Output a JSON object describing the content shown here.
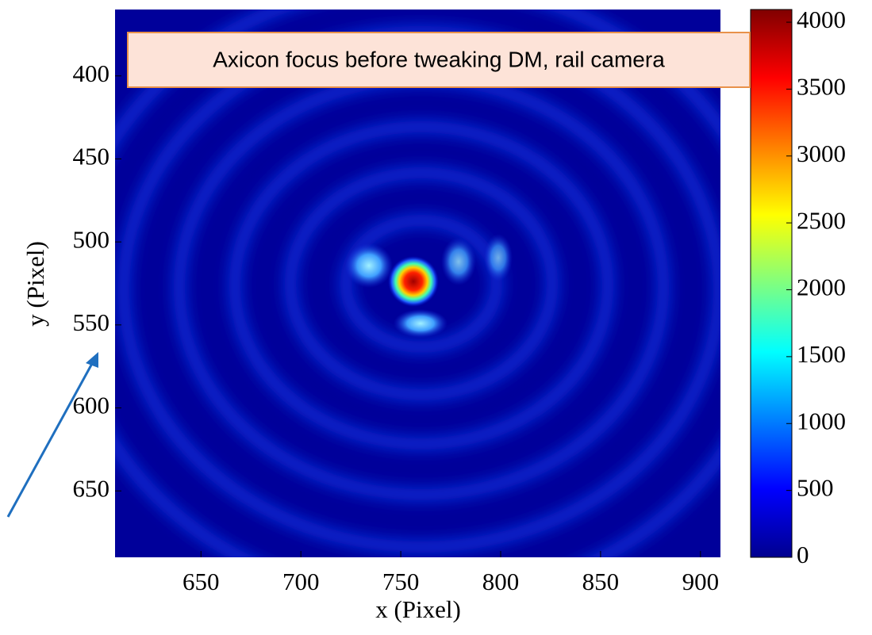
{
  "chart_data": {
    "type": "heatmap",
    "annotation": "Axicon focus before tweaking DM, rail camera",
    "xlabel": "x  (Pixel)",
    "ylabel": "y  (Pixel)",
    "xlim": [
      607,
      910
    ],
    "xticks": [
      650,
      700,
      750,
      800,
      850,
      900
    ],
    "ylim": [
      360,
      690
    ],
    "yticks": [
      400,
      450,
      500,
      550,
      600,
      650
    ],
    "clim": [
      0,
      4095
    ],
    "cticks": [
      0,
      500,
      1000,
      1500,
      2000,
      2500,
      3000,
      3500,
      4000
    ]
  }
}
